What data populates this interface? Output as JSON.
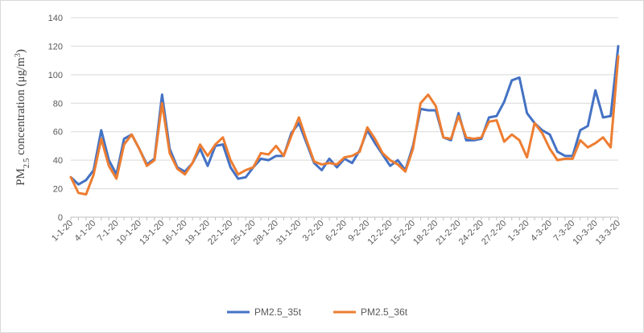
{
  "chart_data": {
    "type": "line",
    "y_label": [
      "PM",
      "2.5",
      " concentration (μg/m",
      "3",
      ")"
    ],
    "categories": [
      "1-1-20",
      null,
      null,
      "4-1-20",
      null,
      null,
      "7-1-20",
      null,
      null,
      "10-1-20",
      null,
      null,
      "13-1-20",
      null,
      null,
      "16-1-20",
      null,
      null,
      "19-1-20",
      null,
      null,
      "22-1-20",
      null,
      null,
      "25-1-20",
      null,
      null,
      "28-1-20",
      null,
      null,
      "31-1-20",
      null,
      null,
      "3-2-20",
      null,
      null,
      "6-2-20",
      null,
      null,
      "9-2-20",
      null,
      null,
      "12-2-20",
      null,
      null,
      "15-2-20",
      null,
      null,
      "18-2-20",
      null,
      null,
      "21-2-20",
      null,
      null,
      "24-2-20",
      null,
      null,
      "27-2-20",
      null,
      null,
      "1-3-20",
      null,
      null,
      "4-3-20",
      null,
      null,
      "7-3-20",
      null,
      null,
      "10-3-20",
      null,
      null,
      "13-3-20"
    ],
    "series": [
      {
        "name": "PM2.5_35t",
        "color": "#4472c4",
        "values": [
          28,
          23,
          26,
          33,
          61,
          40,
          30,
          55,
          58,
          48,
          37,
          41,
          86,
          48,
          35,
          32,
          38,
          48,
          36,
          50,
          51,
          35,
          27,
          28,
          35,
          41,
          40,
          43,
          43,
          59,
          66,
          52,
          38,
          33,
          41,
          35,
          41,
          38,
          47,
          61,
          52,
          44,
          36,
          40,
          33,
          50,
          76,
          75,
          75,
          56,
          54,
          73,
          54,
          54,
          55,
          70,
          71,
          81,
          96,
          98,
          73,
          66,
          61,
          58,
          46,
          43,
          43,
          61,
          64,
          89,
          70,
          71,
          120
        ]
      },
      {
        "name": "PM2.5_36t",
        "color": "#ed7d31",
        "values": [
          28,
          17,
          16,
          30,
          55,
          36,
          27,
          51,
          58,
          48,
          36,
          40,
          80,
          45,
          34,
          30,
          38,
          51,
          43,
          51,
          56,
          40,
          30,
          33,
          35,
          45,
          44,
          50,
          43,
          57,
          70,
          54,
          39,
          37,
          38,
          37,
          42,
          43,
          46,
          63,
          55,
          45,
          40,
          37,
          32,
          48,
          80,
          86,
          78,
          56,
          55,
          71,
          56,
          55,
          56,
          67,
          68,
          53,
          58,
          54,
          42,
          66,
          59,
          48,
          40,
          41,
          41,
          54,
          49,
          52,
          56,
          49,
          113
        ]
      }
    ],
    "ylim": [
      0,
      140
    ],
    "yticks": [
      0,
      20,
      40,
      60,
      80,
      100,
      120,
      140
    ],
    "grid": true,
    "legend": "bottom"
  }
}
